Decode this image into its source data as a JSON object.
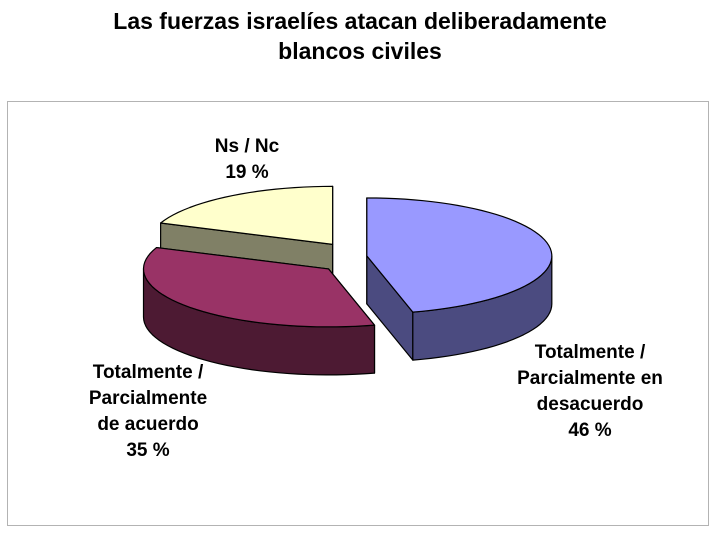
{
  "chart_data": {
    "type": "pie",
    "title": [
      "Las fuerzas israelíes atacan deliberadamente",
      "blancos civiles"
    ],
    "slices": [
      {
        "label": [
          "Totalmente /",
          "Parcialmente en",
          "desacuerdo"
        ],
        "value_label": "46 %",
        "value": 46,
        "top_color": "#9999ff",
        "side_color": "#4b4b80"
      },
      {
        "label": [
          "Totalmente /",
          "Parcialmente",
          "de acuerdo"
        ],
        "value_label": "35 %",
        "value": 35,
        "top_color": "#993366",
        "side_color": "#4d1a33"
      },
      {
        "label": [
          "Ns / Nc"
        ],
        "value_label": "19 %",
        "value": 19,
        "top_color": "#ffffcc",
        "side_color": "#808066"
      }
    ],
    "style": "3d-exploded",
    "legend": "none"
  }
}
